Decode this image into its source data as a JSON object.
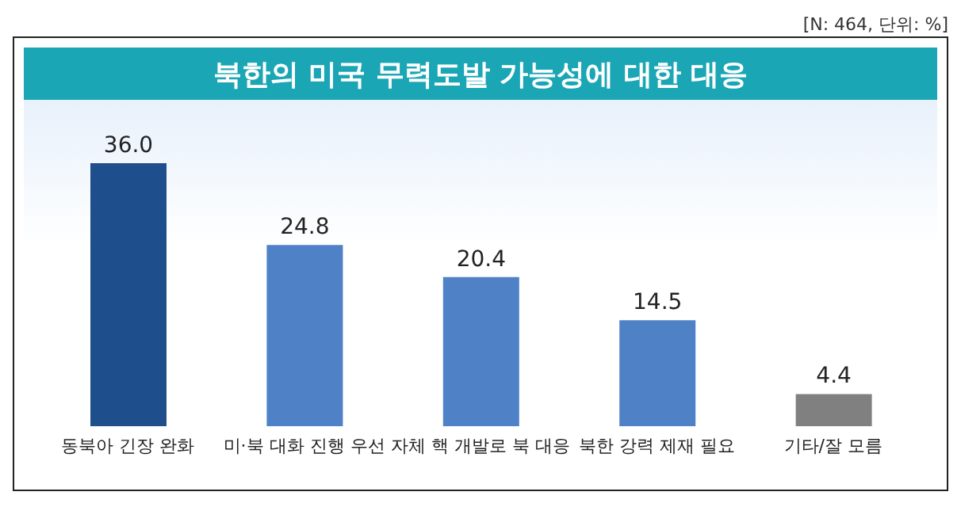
{
  "chart_data": {
    "type": "bar",
    "title": "북한의 미국 무력도발 가능성에 대한 대응",
    "annotations": [
      "[N: 464, 단위: %]"
    ],
    "categories": [
      "동북아 긴장 완화",
      "미·북 대화 진행 우선",
      "자체 핵 개발로 북 대응",
      "북한 강력 제재 필요",
      "기타/잘 모름"
    ],
    "values": [
      36.0,
      24.8,
      20.4,
      14.5,
      4.4
    ],
    "value_labels": [
      "36.0",
      "24.8",
      "20.4",
      "14.5",
      "4.4"
    ],
    "colors": [
      "#1f4e8c",
      "#4f81c7",
      "#4f81c7",
      "#4f81c7",
      "#808080"
    ],
    "grid": false,
    "legend": false
  }
}
